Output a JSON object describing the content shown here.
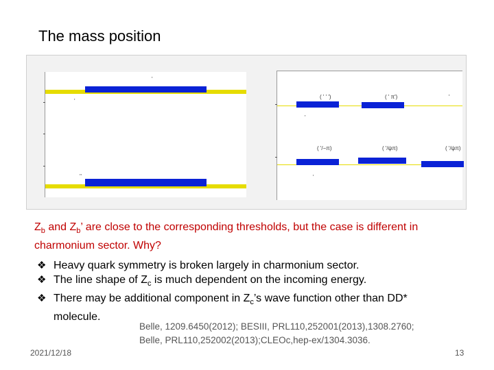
{
  "title": "The mass position",
  "figure": {
    "left_panel": {
      "marks": [
        "'",
        "'",
        "''"
      ]
    },
    "right_panel": {
      "labels": [
        "( ' ' ')",
        "( ' π')",
        "'",
        "( '/−π)",
        "( '/ψπ)",
        "( '/ψπ)",
        "'",
        "'"
      ]
    }
  },
  "statement": {
    "p1_a": "Z",
    "p1_sub1": "b",
    "p1_b": " and Z",
    "p1_sub2": "b",
    "p1_c": "’ are close to the corresponding thresholds, but the case is different in charmonium sector. Why?"
  },
  "bullets": [
    {
      "symbol": "❖",
      "text": "Heavy quark symmetry is broken largely in charmonium sector."
    },
    {
      "symbol": "❖",
      "text_a": "The line shape of Z",
      "text_sub": "c",
      "text_b": " is much dependent on the incoming energy."
    },
    {
      "symbol": "❖",
      "text_a": "There may be additional component in Z",
      "text_sub": "c",
      "text_b": "’s wave function other than DD*",
      "text_cont": "molecule."
    }
  ],
  "references": {
    "line1": "Belle, 1209.6450(2012); BESIII, PRL110,252001(2013),1308.2760;",
    "line2": "Belle, PRL110,252002(2013);CLEOc,hep-ex/1304.3036."
  },
  "footer": {
    "date": "2021/12/18",
    "page": "13"
  },
  "colors": {
    "threshold": "#e6dc00",
    "state_bar": "#0a22d6",
    "statement": "#c00000"
  }
}
